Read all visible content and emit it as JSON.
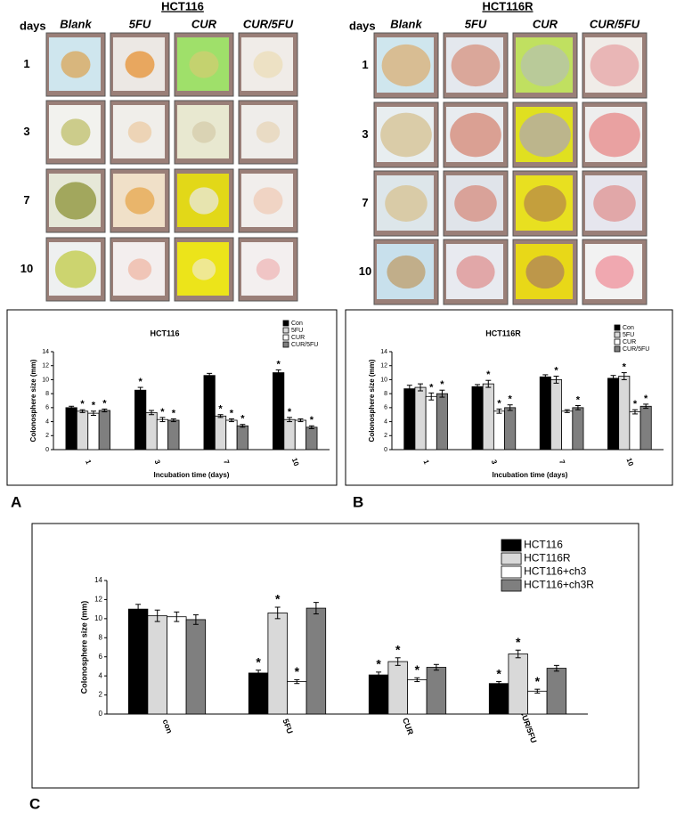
{
  "panels": [
    {
      "title": "HCT116",
      "days_label": "days",
      "columns": [
        "Blank",
        "5FU",
        "CUR",
        "CUR/5FU"
      ],
      "rows": [
        "1",
        "3",
        "7",
        "10"
      ]
    },
    {
      "title": "HCT116R",
      "days_label": "days",
      "columns": [
        "Blank",
        "5FU",
        "CUR",
        "CUR/5FU"
      ],
      "rows": [
        "1",
        "3",
        "7",
        "10"
      ]
    }
  ],
  "panel_letters": [
    "A",
    "B",
    "C"
  ],
  "chart_data": [
    {
      "type": "bar",
      "title": "HCT116",
      "y_label": "Colonosphere size (mm)",
      "x_label": "Incubation time (days)",
      "categories": [
        "1",
        "3",
        "7",
        "10"
      ],
      "ylim": [
        0,
        14
      ],
      "yticks": [
        0,
        2,
        4,
        6,
        8,
        10,
        12,
        14
      ],
      "series": [
        {
          "name": "Con",
          "color": "#000000",
          "values": [
            6.0,
            8.5,
            10.6,
            11.0
          ],
          "errors": [
            0.2,
            0.4,
            0.3,
            0.4
          ],
          "significance": [
            null,
            "*",
            null,
            "*"
          ]
        },
        {
          "name": "5FU",
          "color": "#d9d9d9",
          "values": [
            5.5,
            5.3,
            4.8,
            4.3
          ],
          "errors": [
            0.2,
            0.3,
            0.2,
            0.3
          ],
          "significance": [
            "*",
            null,
            "*",
            "*"
          ]
        },
        {
          "name": "CUR",
          "color": "#ffffff",
          "values": [
            5.2,
            4.3,
            4.2,
            4.2
          ],
          "errors": [
            0.3,
            0.3,
            0.2,
            0.2
          ],
          "significance": [
            "*",
            "*",
            "*",
            null
          ]
        },
        {
          "name": "CUR/5FU",
          "color": "#7f7f7f",
          "values": [
            5.6,
            4.2,
            3.4,
            3.2
          ],
          "errors": [
            0.2,
            0.2,
            0.2,
            0.2
          ],
          "significance": [
            "*",
            "*",
            "*",
            "*"
          ]
        }
      ]
    },
    {
      "type": "bar",
      "title": "HCT116R",
      "y_label": "Colonosphere size (mm)",
      "x_label": "Incubation time (days)",
      "categories": [
        "1",
        "3",
        "7",
        "10"
      ],
      "ylim": [
        0,
        14
      ],
      "yticks": [
        0,
        2,
        4,
        6,
        8,
        10,
        12,
        14
      ],
      "series": [
        {
          "name": "Con",
          "color": "#000000",
          "values": [
            8.7,
            9.0,
            10.4,
            10.2
          ],
          "errors": [
            0.5,
            0.3,
            0.3,
            0.4
          ],
          "significance": [
            null,
            null,
            null,
            null
          ]
        },
        {
          "name": "5FU",
          "color": "#d9d9d9",
          "values": [
            8.9,
            9.4,
            10.0,
            10.5
          ],
          "errors": [
            0.5,
            0.5,
            0.5,
            0.5
          ],
          "significance": [
            null,
            "*",
            "*",
            "*"
          ]
        },
        {
          "name": "CUR",
          "color": "#ffffff",
          "values": [
            7.6,
            5.5,
            5.5,
            5.4
          ],
          "errors": [
            0.5,
            0.3,
            0.2,
            0.3
          ],
          "significance": [
            "*",
            "*",
            null,
            "*"
          ]
        },
        {
          "name": "CUR/5FU",
          "color": "#7f7f7f",
          "values": [
            8.0,
            6.0,
            6.0,
            6.2
          ],
          "errors": [
            0.5,
            0.4,
            0.3,
            0.3
          ],
          "significance": [
            "*",
            "*",
            "*",
            "*"
          ]
        }
      ]
    },
    {
      "type": "bar",
      "y_label": "Colonosphere size (mm)",
      "categories": [
        "con",
        "5FU",
        "CUR",
        "CUR/5FU"
      ],
      "ylim": [
        0,
        14
      ],
      "yticks": [
        0,
        2,
        4,
        6,
        8,
        10,
        12,
        14
      ],
      "series": [
        {
          "name": "HCT116",
          "color": "#000000",
          "values": [
            11.0,
            4.3,
            4.1,
            3.2
          ],
          "errors": [
            0.5,
            0.3,
            0.3,
            0.2
          ],
          "significance": [
            null,
            "*",
            "*",
            "*"
          ]
        },
        {
          "name": "HCT116R",
          "color": "#d9d9d9",
          "values": [
            10.3,
            10.6,
            5.5,
            6.3
          ],
          "errors": [
            0.6,
            0.6,
            0.4,
            0.4
          ],
          "significance": [
            null,
            "*",
            "*",
            "*"
          ]
        },
        {
          "name": "HCT116+ch3",
          "color": "#ffffff",
          "values": [
            10.2,
            3.4,
            3.6,
            2.4
          ],
          "errors": [
            0.5,
            0.2,
            0.2,
            0.2
          ],
          "significance": [
            null,
            "*",
            "*",
            "*"
          ]
        },
        {
          "name": "HCT116+ch3R",
          "color": "#7f7f7f",
          "values": [
            9.9,
            11.1,
            4.9,
            4.8
          ],
          "errors": [
            0.5,
            0.6,
            0.3,
            0.3
          ],
          "significance": [
            null,
            null,
            null,
            null
          ]
        }
      ]
    }
  ]
}
